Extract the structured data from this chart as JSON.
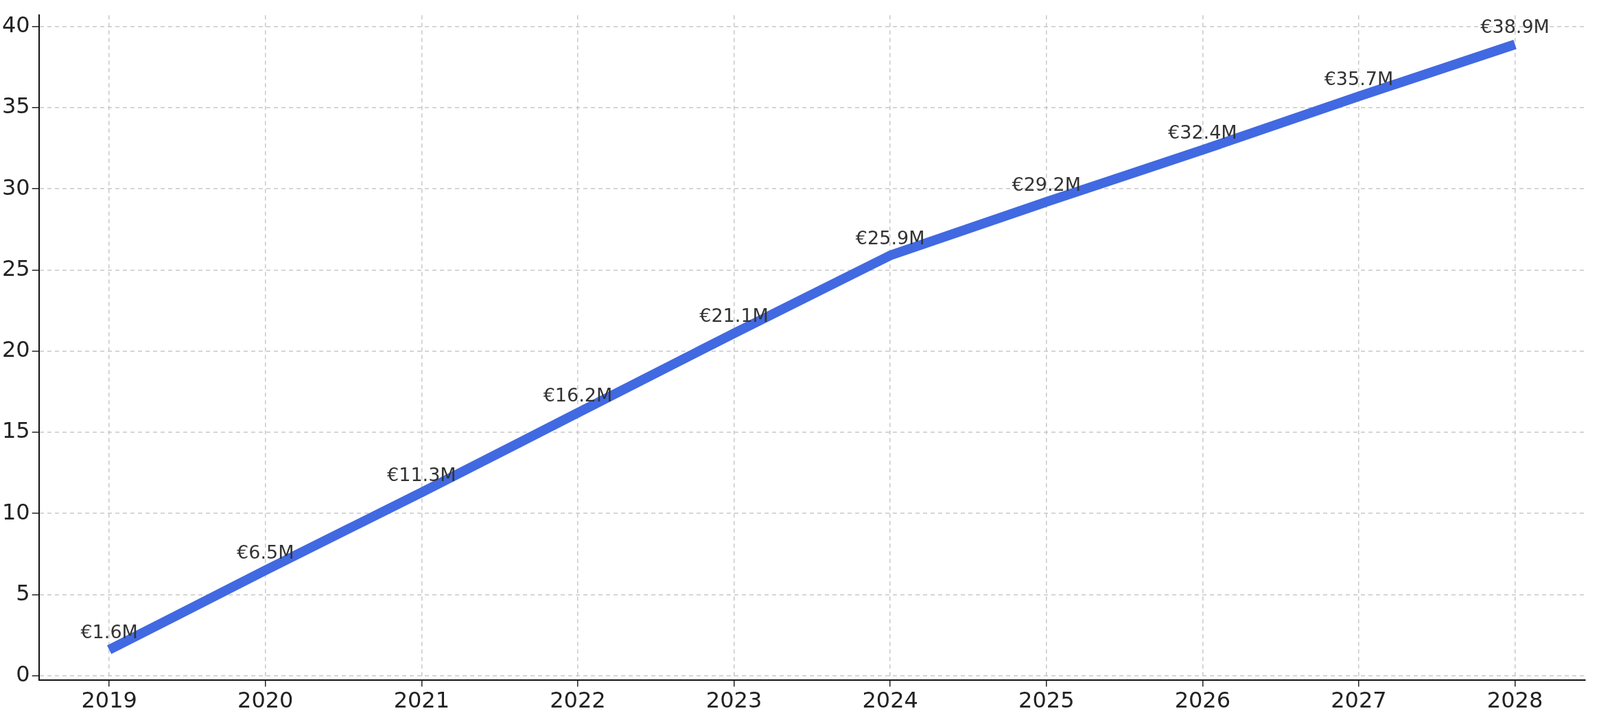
{
  "chart_data": {
    "type": "line",
    "x": [
      2019,
      2020,
      2021,
      2022,
      2023,
      2024,
      2025,
      2026,
      2027,
      2028
    ],
    "series": [
      {
        "color": "#4169e1",
        "values": [
          1.6,
          6.5,
          11.3,
          16.2,
          21.1,
          25.9,
          29.2,
          32.4,
          35.7,
          38.9
        ],
        "value_labels": [
          "€1.6M",
          "€6.5M",
          "€11.3M",
          "€16.2M",
          "€21.1M",
          "€25.9M",
          "€29.2M",
          "€32.4M",
          "€35.7M",
          "€38.9M"
        ]
      }
    ],
    "xlim": [
      2018.55,
      2028.45
    ],
    "xticks": [
      2019,
      2020,
      2021,
      2022,
      2023,
      2024,
      2025,
      2026,
      2027,
      2028
    ],
    "ylim": [
      -0.25,
      40.7
    ],
    "yticks": [
      0,
      5,
      10,
      15,
      20,
      25,
      30,
      35,
      40
    ],
    "grid": true,
    "marker": "none",
    "line_style": "solid",
    "legend": false
  }
}
